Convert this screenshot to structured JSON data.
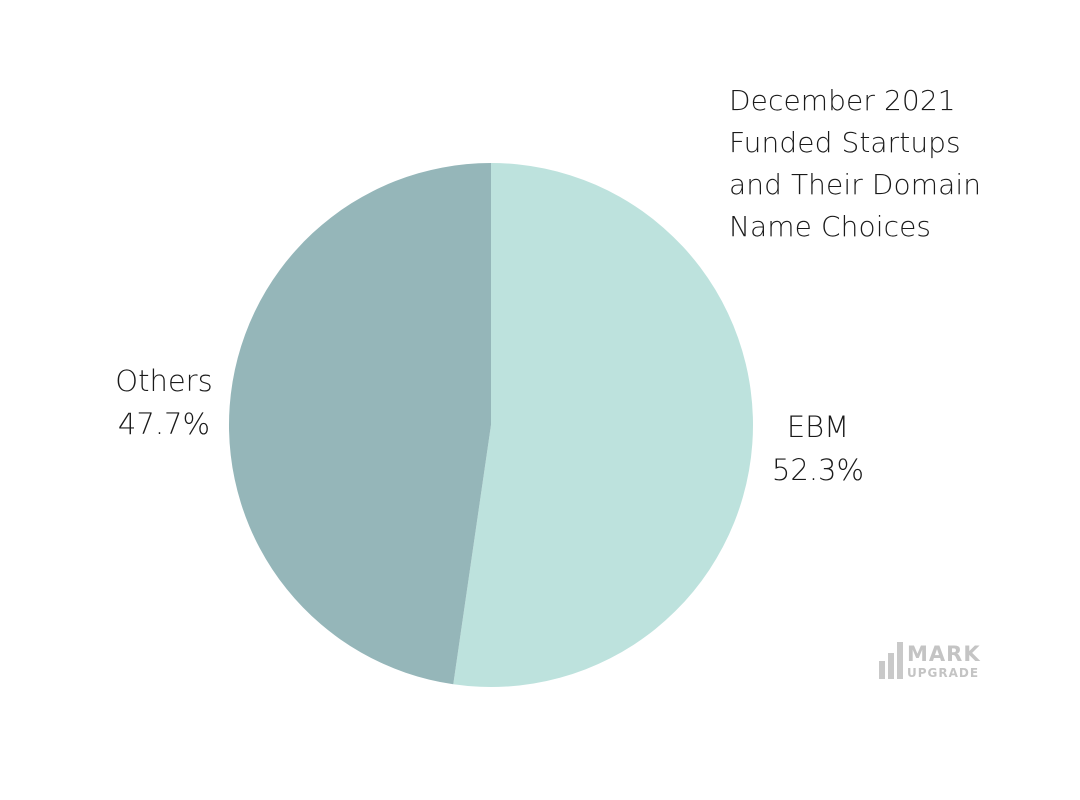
{
  "chart_data": {
    "type": "pie",
    "title_lines": [
      "December 2021",
      "Funded Startups",
      "and Their Domain",
      "Name Choices"
    ],
    "slices": [
      {
        "label": "EBM",
        "percent_label": "52.3%",
        "value": 52.3,
        "color": "#bde2dd"
      },
      {
        "label": "Others",
        "percent_label": "47.7%",
        "value": 47.7,
        "color": "#95b6b9"
      }
    ],
    "start_angle": "12 o'clock",
    "direction": "clockwise"
  },
  "watermark": {
    "line1": "MARK",
    "line2": "UPGRADE",
    "color": "#c4c4c4"
  }
}
